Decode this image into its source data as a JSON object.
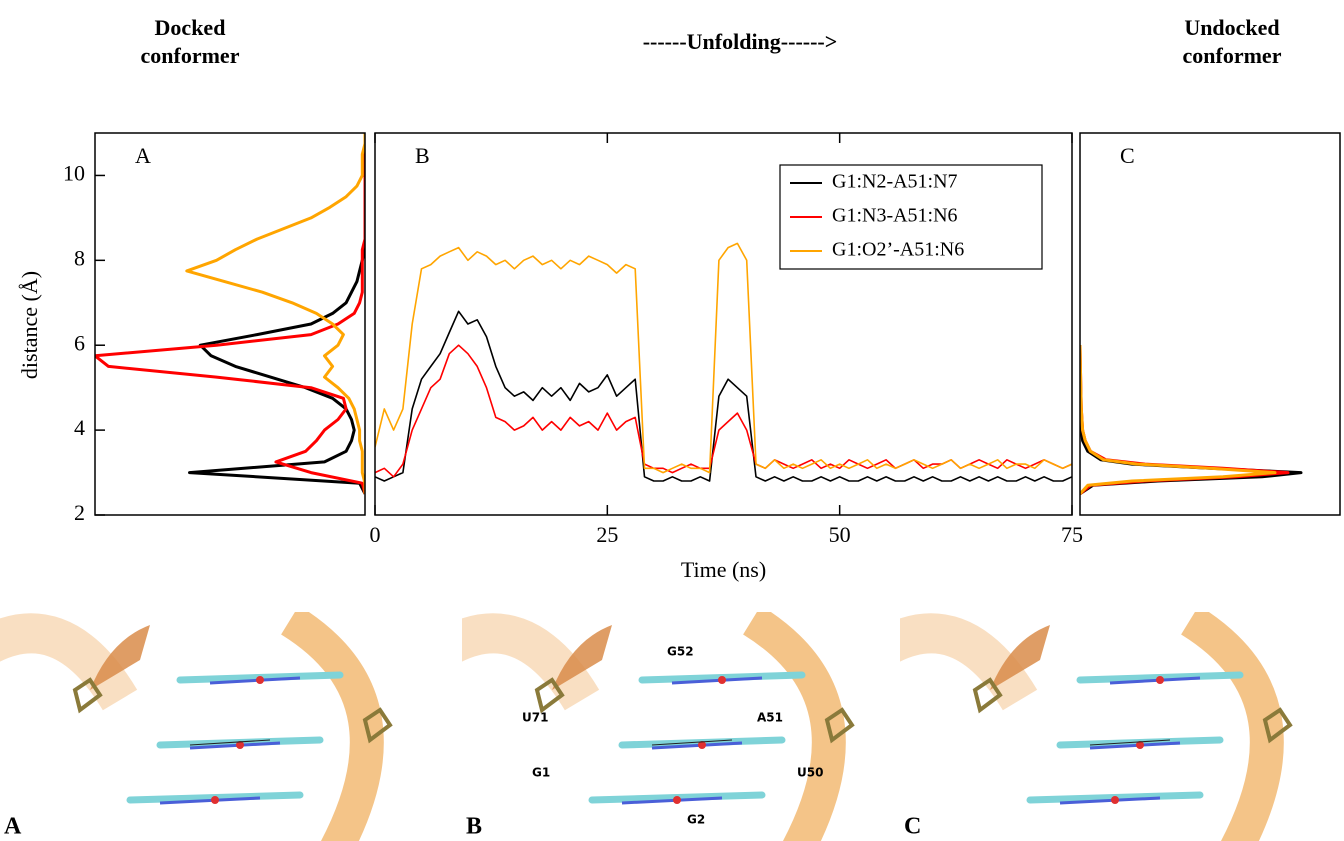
{
  "headings": [
    "Docked conformer",
    "------Unfolding------>",
    "Undocked conformer"
  ],
  "chart_data": [
    {
      "type": "line",
      "label": "A",
      "ylabel": "distance (Å)",
      "xlim": [
        1,
        0
      ],
      "ylim": [
        2,
        11
      ],
      "yticks": [
        2,
        4,
        6,
        8,
        10
      ],
      "y": [
        2.5,
        2.75,
        3,
        3.25,
        3.5,
        3.75,
        4,
        4.25,
        4.5,
        4.75,
        5,
        5.25,
        5.5,
        5.75,
        6,
        6.25,
        6.5,
        6.75,
        7,
        7.25,
        7.5,
        7.75,
        8,
        8.25,
        8.5,
        8.75,
        9,
        9.25,
        9.5,
        9.75,
        10,
        10.25,
        10.5,
        10.75,
        11
      ],
      "series": [
        {
          "name": "G1:N2-A51:N7",
          "color": "#000000",
          "values": [
            0,
            0.02,
            0.65,
            0.15,
            0.07,
            0.05,
            0.04,
            0.05,
            0.07,
            0.12,
            0.22,
            0.35,
            0.48,
            0.57,
            0.61,
            0.4,
            0.2,
            0.12,
            0.07,
            0.05,
            0.03,
            0.02,
            0.01,
            0,
            0,
            0,
            0,
            0,
            0,
            0,
            0,
            0,
            0,
            0,
            0
          ]
        },
        {
          "name": "G1:N3-A51:N6",
          "color": "#ff0000",
          "values": [
            0,
            0.01,
            0.2,
            0.33,
            0.22,
            0.18,
            0.15,
            0.1,
            0.07,
            0.08,
            0.2,
            0.55,
            0.95,
            1,
            0.55,
            0.2,
            0.1,
            0.04,
            0.02,
            0.01,
            0.01,
            0.01,
            0.01,
            0.01,
            0,
            0,
            0,
            0,
            0,
            0,
            0,
            0,
            0,
            0,
            0
          ]
        },
        {
          "name": "G1:O2’-A51:N6",
          "color": "#ffa500",
          "values": [
            0,
            0,
            0.01,
            0.01,
            0.01,
            0.02,
            0.02,
            0.03,
            0.04,
            0.06,
            0.1,
            0.15,
            0.12,
            0.15,
            0.1,
            0.08,
            0.12,
            0.18,
            0.27,
            0.38,
            0.52,
            0.66,
            0.55,
            0.48,
            0.4,
            0.3,
            0.2,
            0.13,
            0.07,
            0.03,
            0.01,
            0.01,
            0.01,
            0,
            0
          ]
        }
      ]
    },
    {
      "type": "line",
      "label": "B",
      "xlabel": "Time (ns)",
      "xlim": [
        0,
        75
      ],
      "xticks": [
        0,
        25,
        50,
        75
      ],
      "ylim": [
        2,
        11
      ],
      "legend": "upper right",
      "x": [
        0,
        1,
        2,
        3,
        4,
        5,
        6,
        7,
        8,
        9,
        10,
        11,
        12,
        13,
        14,
        15,
        16,
        17,
        18,
        19,
        20,
        21,
        22,
        23,
        24,
        25,
        26,
        27,
        28,
        29,
        30,
        31,
        32,
        33,
        34,
        35,
        36,
        37,
        38,
        39,
        40,
        41,
        42,
        43,
        44,
        45,
        46,
        47,
        48,
        49,
        50,
        51,
        52,
        53,
        54,
        55,
        56,
        57,
        58,
        59,
        60,
        61,
        62,
        63,
        64,
        65,
        66,
        67,
        68,
        69,
        70,
        71,
        72,
        73,
        74,
        75
      ],
      "series": [
        {
          "name": "G1:N2-A51:N7",
          "color": "#000000",
          "values": [
            2.9,
            2.8,
            2.9,
            3.0,
            4.5,
            5.2,
            5.5,
            5.8,
            6.3,
            6.8,
            6.5,
            6.6,
            6.2,
            5.5,
            5.0,
            4.8,
            4.9,
            4.7,
            5.0,
            4.8,
            5.0,
            4.7,
            5.1,
            4.9,
            5.0,
            5.3,
            4.8,
            5.0,
            5.2,
            2.9,
            2.8,
            2.8,
            2.9,
            2.8,
            2.8,
            2.9,
            2.8,
            4.8,
            5.2,
            5.0,
            4.8,
            2.9,
            2.8,
            2.9,
            2.8,
            2.9,
            2.8,
            2.8,
            2.9,
            2.8,
            2.9,
            2.8,
            2.8,
            2.9,
            2.8,
            2.9,
            2.8,
            2.8,
            2.9,
            2.8,
            2.9,
            2.8,
            2.8,
            2.9,
            2.8,
            2.9,
            2.8,
            2.9,
            2.8,
            2.8,
            2.9,
            2.8,
            2.9,
            2.8,
            2.8,
            2.9
          ]
        },
        {
          "name": "G1:N3-A51:N6",
          "color": "#ff0000",
          "values": [
            3.0,
            3.1,
            2.9,
            3.2,
            4.0,
            4.5,
            5.0,
            5.2,
            5.8,
            6.0,
            5.8,
            5.5,
            5.0,
            4.3,
            4.2,
            4.0,
            4.1,
            4.3,
            4.0,
            4.2,
            4.0,
            4.3,
            4.1,
            4.2,
            4.0,
            4.4,
            4.0,
            4.2,
            4.3,
            3.2,
            3.1,
            3.1,
            3.0,
            3.1,
            3.2,
            3.1,
            3.1,
            4.0,
            4.2,
            4.4,
            4.0,
            3.2,
            3.1,
            3.3,
            3.2,
            3.1,
            3.2,
            3.3,
            3.1,
            3.2,
            3.1,
            3.3,
            3.2,
            3.1,
            3.2,
            3.3,
            3.1,
            3.2,
            3.3,
            3.1,
            3.2,
            3.2,
            3.3,
            3.1,
            3.2,
            3.3,
            3.2,
            3.1,
            3.3,
            3.2,
            3.1,
            3.2,
            3.3,
            3.2,
            3.1,
            3.2
          ]
        },
        {
          "name": "G1:O2’-A51:N6",
          "color": "#ffa500",
          "values": [
            3.6,
            4.5,
            4.0,
            4.5,
            6.5,
            7.8,
            7.9,
            8.1,
            8.2,
            8.3,
            8.0,
            8.2,
            8.1,
            7.9,
            8.0,
            7.8,
            8.0,
            8.1,
            7.9,
            8.0,
            7.8,
            8.0,
            7.9,
            8.1,
            8.0,
            7.9,
            7.7,
            7.9,
            7.8,
            3.1,
            3.1,
            3.0,
            3.1,
            3.2,
            3.1,
            3.1,
            3.0,
            8.0,
            8.3,
            8.4,
            8.0,
            3.2,
            3.1,
            3.3,
            3.1,
            3.2,
            3.1,
            3.2,
            3.3,
            3.1,
            3.2,
            3.1,
            3.2,
            3.3,
            3.1,
            3.2,
            3.1,
            3.2,
            3.3,
            3.2,
            3.1,
            3.2,
            3.3,
            3.1,
            3.2,
            3.1,
            3.2,
            3.3,
            3.1,
            3.2,
            3.2,
            3.1,
            3.3,
            3.2,
            3.1,
            3.2
          ]
        }
      ]
    },
    {
      "type": "line",
      "label": "C",
      "xlim": [
        0,
        1
      ],
      "ylim": [
        2,
        11
      ],
      "y": [
        2.5,
        2.7,
        2.8,
        2.9,
        3.0,
        3.1,
        3.2,
        3.3,
        3.5,
        3.75,
        4,
        4.5,
        5,
        6
      ],
      "series": [
        {
          "name": "G1:N2-A51:N7",
          "color": "#000000",
          "values": [
            0,
            0.05,
            0.3,
            0.7,
            0.85,
            0.5,
            0.2,
            0.08,
            0.03,
            0.01,
            0.005,
            0,
            0,
            0
          ]
        },
        {
          "name": "G1:N3-A51:N6",
          "color": "#ff0000",
          "values": [
            0,
            0.04,
            0.25,
            0.6,
            0.8,
            0.55,
            0.25,
            0.1,
            0.04,
            0.02,
            0.01,
            0.005,
            0.003,
            0
          ]
        },
        {
          "name": "G1:O2’-A51:N6",
          "color": "#ffa500",
          "values": [
            0,
            0.03,
            0.2,
            0.55,
            0.75,
            0.5,
            0.22,
            0.09,
            0.04,
            0.02,
            0.01,
            0.005,
            0.003,
            0
          ]
        }
      ]
    }
  ],
  "images": [
    {
      "label": "A"
    },
    {
      "label": "B",
      "residues": [
        "G52",
        "U71",
        "A51",
        "G1",
        "U50",
        "G2"
      ]
    },
    {
      "label": "C"
    }
  ]
}
